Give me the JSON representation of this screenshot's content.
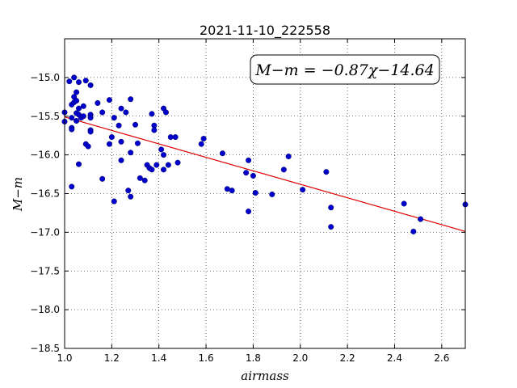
{
  "chart_data": {
    "type": "scatter",
    "title": "2021-11-10_222558",
    "xlabel": "airmass",
    "ylabel": "M−m",
    "annotation": "M−m = −0.87χ−14.64",
    "xlim": [
      1.0,
      2.7
    ],
    "ylim": [
      -18.5,
      -14.5
    ],
    "xticks": [
      "1.0",
      "1.2",
      "1.4",
      "1.6",
      "1.8",
      "2.0",
      "2.2",
      "2.4",
      "2.6"
    ],
    "yticks": [
      "−15.0",
      "−15.5",
      "−16.0",
      "−16.5",
      "−17.0",
      "−17.5",
      "−18.0",
      "−18.5"
    ],
    "grid": true,
    "point_color": "#0000cc",
    "fit_color": "#dd0000",
    "fit": {
      "slope": -0.87,
      "intercept": -14.64
    },
    "points": [
      [
        1.0,
        -15.45
      ],
      [
        1.0,
        -15.57
      ],
      [
        1.02,
        -15.05
      ],
      [
        1.03,
        -15.35
      ],
      [
        1.03,
        -15.52
      ],
      [
        1.03,
        -15.65
      ],
      [
        1.03,
        -15.67
      ],
      [
        1.04,
        -15.32
      ],
      [
        1.04,
        -15.25
      ],
      [
        1.04,
        -15.0
      ],
      [
        1.05,
        -15.19
      ],
      [
        1.05,
        -15.56
      ],
      [
        1.05,
        -15.46
      ],
      [
        1.06,
        -15.4
      ],
      [
        1.06,
        -15.06
      ],
      [
        1.05,
        -15.3
      ],
      [
        1.06,
        -15.48
      ],
      [
        1.07,
        -15.52
      ],
      [
        1.08,
        -15.5
      ],
      [
        1.08,
        -15.37
      ],
      [
        1.09,
        -15.04
      ],
      [
        1.09,
        -15.86
      ],
      [
        1.1,
        -15.89
      ],
      [
        1.11,
        -15.1
      ],
      [
        1.11,
        -15.48
      ],
      [
        1.11,
        -15.52
      ],
      [
        1.11,
        -15.68
      ],
      [
        1.11,
        -15.7
      ],
      [
        1.03,
        -16.41
      ],
      [
        1.06,
        -16.12
      ],
      [
        1.14,
        -15.33
      ],
      [
        1.16,
        -15.45
      ],
      [
        1.16,
        -16.31
      ],
      [
        1.19,
        -15.29
      ],
      [
        1.19,
        -15.86
      ],
      [
        1.2,
        -15.77
      ],
      [
        1.21,
        -15.52
      ],
      [
        1.21,
        -16.6
      ],
      [
        1.23,
        -15.62
      ],
      [
        1.24,
        -15.83
      ],
      [
        1.24,
        -15.4
      ],
      [
        1.24,
        -16.07
      ],
      [
        1.26,
        -15.45
      ],
      [
        1.27,
        -16.46
      ],
      [
        1.28,
        -15.28
      ],
      [
        1.28,
        -15.97
      ],
      [
        1.28,
        -16.54
      ],
      [
        1.3,
        -15.61
      ],
      [
        1.31,
        -15.85
      ],
      [
        1.32,
        -16.3
      ],
      [
        1.34,
        -16.33
      ],
      [
        1.35,
        -16.13
      ],
      [
        1.36,
        -16.17
      ],
      [
        1.37,
        -15.47
      ],
      [
        1.37,
        -16.19
      ],
      [
        1.38,
        -15.62
      ],
      [
        1.38,
        -15.68
      ],
      [
        1.39,
        -16.13
      ],
      [
        1.41,
        -15.93
      ],
      [
        1.42,
        -16.0
      ],
      [
        1.42,
        -16.19
      ],
      [
        1.42,
        -15.4
      ],
      [
        1.43,
        -15.45
      ],
      [
        1.44,
        -16.13
      ],
      [
        1.45,
        -15.77
      ],
      [
        1.47,
        -15.77
      ],
      [
        1.48,
        -16.1
      ],
      [
        1.58,
        -15.86
      ],
      [
        1.59,
        -15.79
      ],
      [
        1.67,
        -15.98
      ],
      [
        1.69,
        -16.44
      ],
      [
        1.71,
        -16.46
      ],
      [
        1.77,
        -16.23
      ],
      [
        1.78,
        -16.07
      ],
      [
        1.78,
        -16.73
      ],
      [
        1.8,
        -16.27
      ],
      [
        1.81,
        -16.49
      ],
      [
        1.88,
        -16.51
      ],
      [
        1.93,
        -16.19
      ],
      [
        1.95,
        -16.02
      ],
      [
        2.01,
        -16.45
      ],
      [
        2.11,
        -16.22
      ],
      [
        2.13,
        -16.68
      ],
      [
        2.13,
        -16.93
      ],
      [
        2.44,
        -16.63
      ],
      [
        2.48,
        -16.99
      ],
      [
        2.51,
        -16.83
      ],
      [
        2.7,
        -16.64
      ]
    ]
  }
}
